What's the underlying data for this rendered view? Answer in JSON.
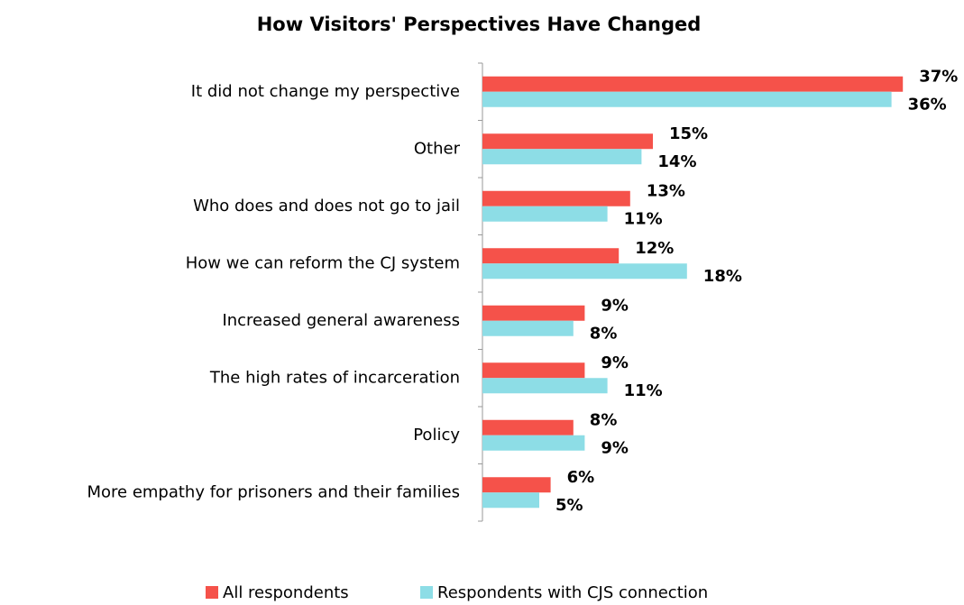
{
  "chart_data": {
    "type": "bar",
    "orientation": "horizontal",
    "title": "How Visitors' Perspectives Have Changed",
    "categories": [
      "It did not change my perspective",
      "Other",
      "Who does and does not go to jail",
      "How we can reform the CJ system",
      "Increased general awareness",
      "The high rates of incarceration",
      "Policy",
      "More empathy for prisoners and their families"
    ],
    "series": [
      {
        "name": "All respondents",
        "color": "#f5524a",
        "values": [
          37,
          15,
          13,
          12,
          9,
          9,
          8,
          6
        ],
        "value_labels": [
          "37%",
          "15%",
          "13%",
          "12%",
          "9%",
          "9%",
          "8%",
          "6%"
        ]
      },
      {
        "name": "Respondents with CJS connection",
        "color": "#8ddde6",
        "values": [
          36,
          14,
          11,
          18,
          8,
          11,
          9,
          5
        ],
        "value_labels": [
          "36%",
          "14%",
          "11%",
          "18%",
          "8%",
          "11%",
          "9%",
          "5%"
        ]
      }
    ],
    "legend": "bottom"
  }
}
